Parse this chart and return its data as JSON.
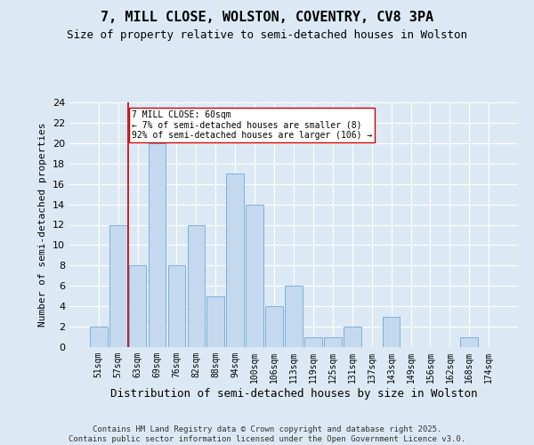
{
  "title1": "7, MILL CLOSE, WOLSTON, COVENTRY, CV8 3PA",
  "title2": "Size of property relative to semi-detached houses in Wolston",
  "xlabel": "Distribution of semi-detached houses by size in Wolston",
  "ylabel": "Number of semi-detached properties",
  "categories": [
    "51sqm",
    "57sqm",
    "63sqm",
    "69sqm",
    "76sqm",
    "82sqm",
    "88sqm",
    "94sqm",
    "100sqm",
    "106sqm",
    "113sqm",
    "119sqm",
    "125sqm",
    "131sqm",
    "137sqm",
    "143sqm",
    "149sqm",
    "156sqm",
    "162sqm",
    "168sqm",
    "174sqm"
  ],
  "values": [
    2,
    12,
    8,
    20,
    8,
    12,
    5,
    17,
    14,
    4,
    6,
    1,
    1,
    2,
    0,
    3,
    0,
    0,
    0,
    1,
    0
  ],
  "bar_color": "#c5d9ee",
  "bar_edge_color": "#6aaad4",
  "vline_color": "#cc0000",
  "vline_x": 1.5,
  "annotation_text": "7 MILL CLOSE: 60sqm\n← 7% of semi-detached houses are smaller (8)\n92% of semi-detached houses are larger (106) →",
  "ylim": [
    0,
    24
  ],
  "yticks": [
    0,
    2,
    4,
    6,
    8,
    10,
    12,
    14,
    16,
    18,
    20,
    22,
    24
  ],
  "background_color": "#dce9f5",
  "footer": "Contains HM Land Registry data © Crown copyright and database right 2025.\nContains public sector information licensed under the Open Government Licence v3.0."
}
